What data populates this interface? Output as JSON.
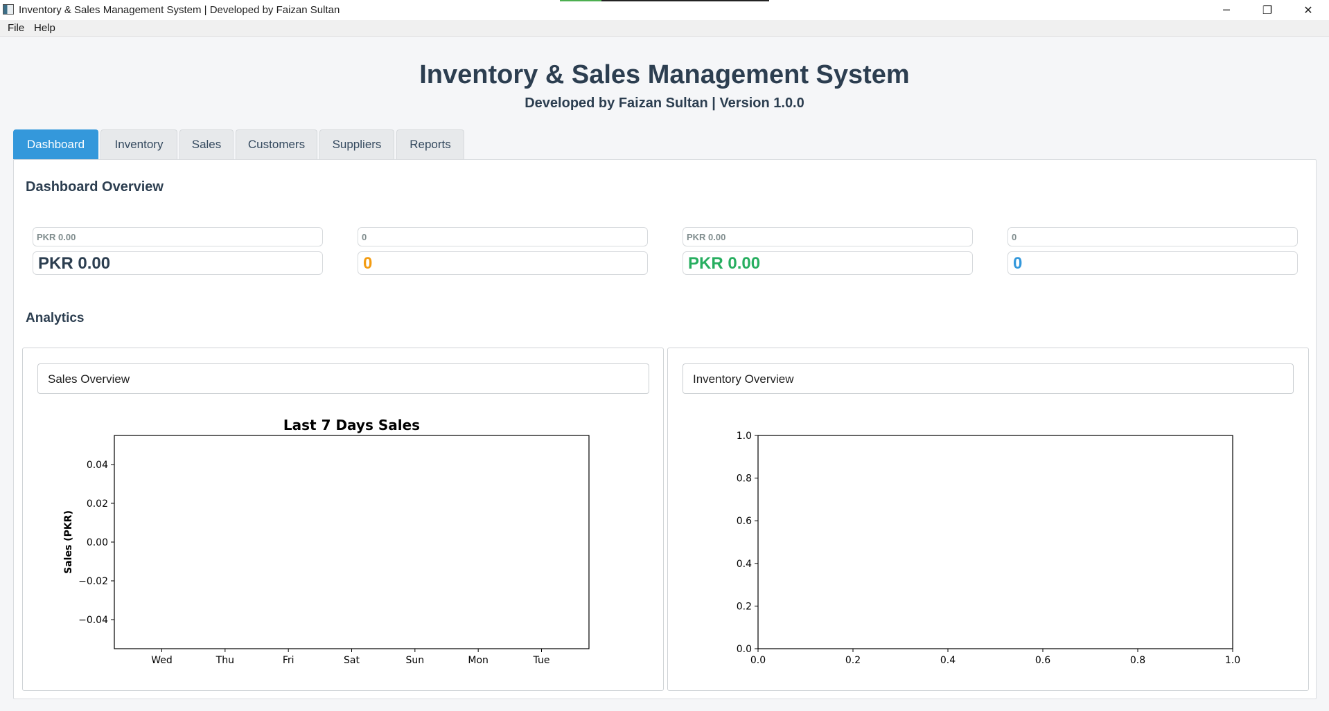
{
  "window": {
    "title": "Inventory & Sales Management System | Developed by Faizan Sultan",
    "controls": {
      "minimize": "─",
      "maximize": "❐",
      "close": "✕"
    },
    "progress_fraction": 0.2
  },
  "menu": {
    "file": "File",
    "help": "Help"
  },
  "header": {
    "title": "Inventory & Sales Management System",
    "subtitle": "Developed by Faizan Sultan | Version 1.0.0"
  },
  "tabs": [
    {
      "label": "Dashboard",
      "active": true
    },
    {
      "label": "Inventory",
      "active": false
    },
    {
      "label": "Sales",
      "active": false
    },
    {
      "label": "Customers",
      "active": false
    },
    {
      "label": "Suppliers",
      "active": false
    },
    {
      "label": "Reports",
      "active": false
    }
  ],
  "dashboard": {
    "title": "Dashboard Overview",
    "stats": [
      {
        "caption": "PKR 0.00",
        "value": "PKR 0.00",
        "color": "#2c3e50"
      },
      {
        "caption": "0",
        "value": "0",
        "color": "#f39c12"
      },
      {
        "caption": "PKR 0.00",
        "value": "PKR 0.00",
        "color": "#27ae60"
      },
      {
        "caption": "0",
        "value": "0",
        "color": "#3498db"
      }
    ],
    "analytics_title": "Analytics"
  },
  "sales_panel": {
    "header": "Sales Overview"
  },
  "inventory_panel": {
    "header": "Inventory Overview"
  },
  "chart_data": [
    {
      "type": "bar",
      "title": "Last 7 Days Sales",
      "xlabel": "",
      "ylabel": "Sales (PKR)",
      "categories": [
        "Wed",
        "Thu",
        "Fri",
        "Sat",
        "Sun",
        "Mon",
        "Tue"
      ],
      "values": [
        0,
        0,
        0,
        0,
        0,
        0,
        0
      ],
      "yticks": [
        "0.04",
        "0.02",
        "0.00",
        "−0.02",
        "−0.04"
      ],
      "ylim": [
        -0.055,
        0.055
      ],
      "grid": false
    },
    {
      "type": "scatter",
      "title": "",
      "xlabel": "",
      "ylabel": "",
      "x": [],
      "y": [],
      "xticks": [
        "0.0",
        "0.2",
        "0.4",
        "0.6",
        "0.8",
        "1.0"
      ],
      "yticks": [
        "0.0",
        "0.2",
        "0.4",
        "0.6",
        "0.8",
        "1.0"
      ],
      "xlim": [
        0,
        1
      ],
      "ylim": [
        0,
        1
      ],
      "grid": false
    }
  ]
}
